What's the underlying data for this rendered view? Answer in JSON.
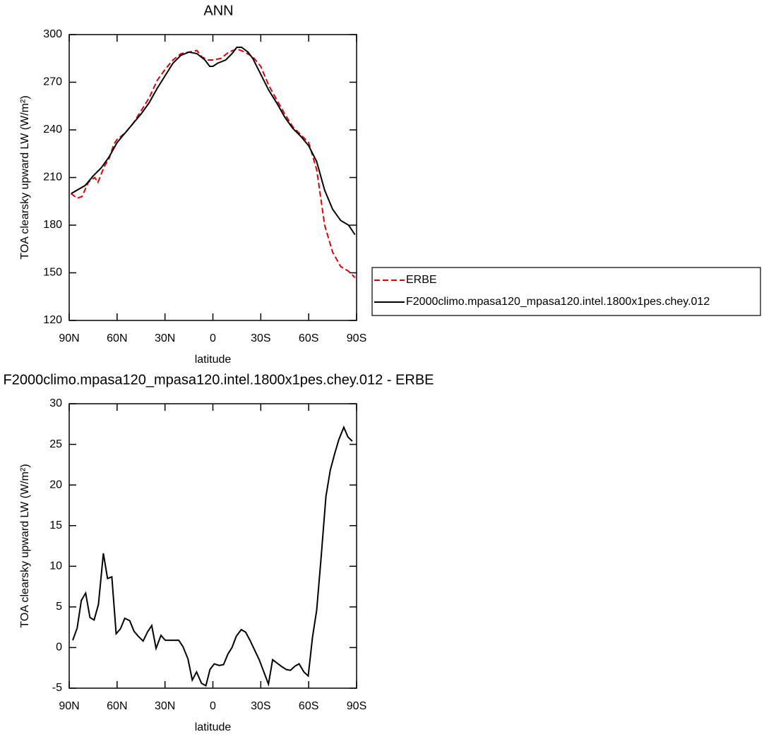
{
  "chart_data": [
    {
      "type": "line",
      "title": "ANN",
      "x_label": "latitude",
      "y_label": "TOA clearsky upward LW (W/m²)",
      "xlim": [
        90,
        -90
      ],
      "ylim": [
        120,
        300
      ],
      "xticks": [
        {
          "value": 90,
          "label": "90N"
        },
        {
          "value": 60,
          "label": "60N"
        },
        {
          "value": 30,
          "label": "30N"
        },
        0,
        {
          "value": -30,
          "label": "30S"
        },
        {
          "value": -60,
          "label": "60S"
        },
        {
          "value": -90,
          "label": "90S"
        }
      ],
      "yticks": [
        120,
        150,
        180,
        210,
        240,
        270,
        300
      ],
      "legend": "right",
      "series": [
        {
          "name": "ERBE",
          "color": "#e00000",
          "style": "dashed",
          "x": [
            89,
            85,
            82,
            78,
            74,
            72,
            68,
            65,
            62,
            60,
            55,
            50,
            45,
            40,
            35,
            30,
            25,
            20,
            15,
            10,
            7,
            3,
            0,
            -5,
            -10,
            -15,
            -20,
            -25,
            -30,
            -35,
            -40,
            -45,
            -50,
            -55,
            -60,
            -65,
            -70,
            -75,
            -80,
            -85,
            -89
          ],
          "values": [
            200,
            197,
            198,
            207,
            210,
            207,
            217,
            222,
            231,
            234,
            238,
            244,
            252,
            260,
            271,
            278,
            284,
            288,
            289,
            290,
            286,
            284,
            284,
            285,
            289,
            291,
            289,
            286,
            280,
            268,
            259,
            250,
            242,
            237,
            232,
            215,
            180,
            163,
            154,
            151,
            147
          ]
        },
        {
          "name": "F2000climo.mpasa120_mpasa120.intel.1800x1pes.chey.012",
          "color": "#000000",
          "style": "solid",
          "x": [
            88.6,
            80,
            75,
            70,
            65,
            60,
            55,
            50,
            45,
            40,
            35,
            30,
            25,
            20,
            15,
            10,
            5,
            2,
            0,
            -3,
            -8,
            -12,
            -15,
            -18,
            -22,
            -25,
            -30,
            -35,
            -40,
            -45,
            -50,
            -55,
            -60,
            -65,
            -70,
            -75,
            -80,
            -85,
            -89
          ],
          "values": [
            200,
            205,
            211,
            216,
            223,
            232,
            238,
            244,
            250,
            257,
            266,
            274,
            282,
            287,
            289,
            288,
            284,
            280,
            280,
            282,
            284,
            288,
            292,
            292,
            289,
            285,
            275,
            265,
            257,
            248,
            241,
            236,
            230,
            220,
            202,
            190,
            183,
            180,
            174
          ]
        }
      ]
    },
    {
      "type": "line",
      "title": "F2000climo.mpasa120_mpasa120.intel.1800x1pes.chey.012 - ERBE",
      "x_label": "latitude",
      "y_label": "TOA clearsky upward LW (W/m²)",
      "xlim": [
        90,
        -90
      ],
      "ylim": [
        -5,
        30
      ],
      "xticks": [
        {
          "value": 90,
          "label": "90N"
        },
        {
          "value": 60,
          "label": "60N"
        },
        {
          "value": 30,
          "label": "30N"
        },
        0,
        {
          "value": -30,
          "label": "30S"
        },
        {
          "value": -60,
          "label": "60S"
        },
        {
          "value": -90,
          "label": "90S"
        }
      ],
      "yticks": [
        -5,
        0,
        5,
        10,
        15,
        20,
        25,
        30
      ],
      "series": [
        {
          "color": "#000000",
          "style": "solid",
          "x": [
            87.8,
            85,
            82.4,
            79.7,
            77,
            74.4,
            71.7,
            68.6,
            66,
            63.3,
            60.6,
            57.9,
            55.2,
            52.1,
            49.4,
            46.8,
            43.7,
            41,
            38.3,
            35.6,
            32.5,
            29.8,
            27.2,
            24,
            21.4,
            18.7,
            15.6,
            12.9,
            10.2,
            7.1,
            4.4,
            1.8,
            -0.9,
            -4,
            -6.7,
            -9.4,
            -12,
            -14.7,
            -17.8,
            -20.5,
            -23.2,
            -29,
            -34.8,
            -37.4,
            -42.8,
            -45.9,
            -48.6,
            -51.3,
            -54,
            -57,
            -59.7,
            -62.4,
            -65,
            -67.8,
            -70.8,
            -73.5,
            -76.2,
            -78.9,
            -82,
            -84.6,
            -87.3
          ],
          "values": [
            0.9,
            2.4,
            5.8,
            6.7,
            3.7,
            3.4,
            5.3,
            11.6,
            8.5,
            8.7,
            1.7,
            2.3,
            3.6,
            3.3,
            2.0,
            1.4,
            0.8,
            1.9,
            2.7,
            -0.1,
            1.5,
            0.9,
            0.9,
            0.9,
            0.9,
            0.1,
            -1.4,
            -4.0,
            -3.0,
            -4.4,
            -4.7,
            -2.7,
            -2.0,
            -2.2,
            -2.1,
            -0.8,
            0,
            1.4,
            2.2,
            1.9,
            0.9,
            -1.5,
            -4.5,
            -1.5,
            -2.3,
            -2.7,
            -2.8,
            -2.3,
            -2.0,
            -3.0,
            -3.5,
            1.3,
            4.6,
            11.1,
            18.6,
            21.8,
            23.8,
            25.6,
            27.1,
            25.9,
            25.4
          ]
        }
      ]
    }
  ]
}
